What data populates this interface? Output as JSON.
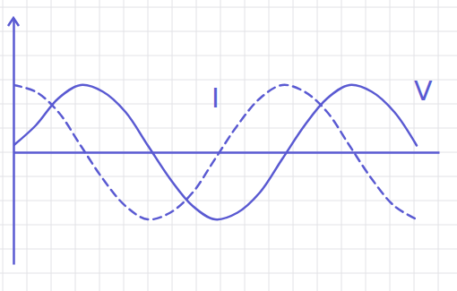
{
  "chart_data": {
    "type": "line",
    "x": [
      0,
      1,
      2,
      3,
      4,
      5,
      6,
      7,
      8,
      9,
      10,
      11,
      12,
      13,
      14,
      15,
      16,
      17,
      18
    ],
    "series": [
      {
        "name": "V",
        "color": "#5a5ad2",
        "line_style": "solid",
        "values": [
          0.3,
          1.2,
          2.4,
          3.0,
          2.7,
          1.8,
          0.3,
          -1.2,
          -2.4,
          -3.0,
          -2.7,
          -1.8,
          -0.3,
          1.2,
          2.4,
          3.0,
          2.7,
          1.8,
          0.3
        ]
      },
      {
        "name": "I",
        "color": "#5a5ad2",
        "line_style": "dashed",
        "values": [
          3.0,
          2.7,
          1.8,
          0.3,
          -1.2,
          -2.4,
          -3.0,
          -2.7,
          -1.8,
          -0.3,
          1.2,
          2.4,
          3.0,
          2.7,
          1.8,
          0.3,
          -1.2,
          -2.4,
          -3.0
        ]
      }
    ],
    "xlim": [
      0,
      19
    ],
    "ylim": [
      -5,
      6
    ],
    "tick_labels": false
  }
}
